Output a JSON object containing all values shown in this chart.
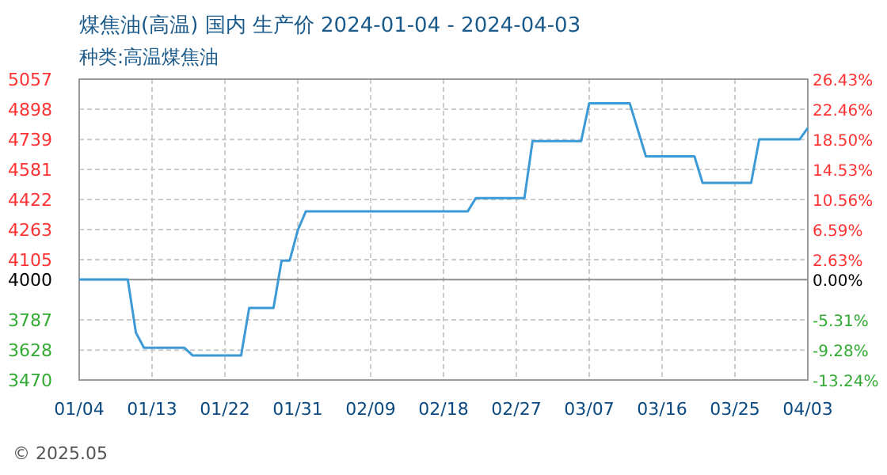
{
  "chart_data": {
    "type": "line",
    "title": "煤焦油(高温) 国内 生产价 2024-01-04 - 2024-04-03",
    "subtitle": "种类:高温煤焦油",
    "x": [
      "2024-01-04",
      "2024-01-10",
      "2024-01-11",
      "2024-01-12",
      "2024-01-17",
      "2024-01-18",
      "2024-01-24",
      "2024-01-25",
      "2024-01-28",
      "2024-01-29",
      "2024-01-30",
      "2024-01-31",
      "2024-02-01",
      "2024-02-21",
      "2024-02-22",
      "2024-02-28",
      "2024-02-29",
      "2024-03-06",
      "2024-03-07",
      "2024-03-12",
      "2024-03-14",
      "2024-03-20",
      "2024-03-21",
      "2024-03-27",
      "2024-03-28",
      "2024-04-02",
      "2024-04-03"
    ],
    "series": [
      {
        "color": "#3c9ad6",
        "values": [
          4000,
          4000,
          3720,
          3640,
          3640,
          3600,
          3600,
          3850,
          3850,
          4100,
          4100,
          4260,
          4360,
          4360,
          4430,
          4430,
          4730,
          4730,
          4930,
          4930,
          4650,
          4650,
          4510,
          4510,
          4740,
          4740,
          4800
        ]
      }
    ],
    "xlim": [
      "2024-01-04",
      "2024-04-03"
    ],
    "xticks": [
      {
        "value": "2024-01-04",
        "label": "01/04"
      },
      {
        "value": "2024-01-13",
        "label": "01/13"
      },
      {
        "value": "2024-01-22",
        "label": "01/22"
      },
      {
        "value": "2024-01-31",
        "label": "01/31"
      },
      {
        "value": "2024-02-09",
        "label": "02/09"
      },
      {
        "value": "2024-02-18",
        "label": "02/18"
      },
      {
        "value": "2024-02-27",
        "label": "02/27"
      },
      {
        "value": "2024-03-07",
        "label": "03/07"
      },
      {
        "value": "2024-03-16",
        "label": "03/16"
      },
      {
        "value": "2024-03-25",
        "label": "03/25"
      },
      {
        "value": "2024-04-03",
        "label": "04/03"
      }
    ],
    "ylim": [
      3470,
      5057
    ],
    "yticks": [
      3470,
      3628,
      3787,
      4000,
      4105,
      4263,
      4422,
      4581,
      4739,
      4898,
      5057
    ],
    "y2lim": [
      -13.24,
      26.43
    ],
    "y2ticks": [
      {
        "value": -13.24,
        "label": "-13.24%"
      },
      {
        "value": -9.28,
        "label": "-9.28%"
      },
      {
        "value": -5.31,
        "label": "-5.31%"
      },
      {
        "value": 0,
        "label": "0.00%"
      },
      {
        "value": 2.63,
        "label": "2.63%"
      },
      {
        "value": 6.59,
        "label": "6.59%"
      },
      {
        "value": 10.56,
        "label": "10.56%"
      },
      {
        "value": 14.53,
        "label": "14.53%"
      },
      {
        "value": 18.5,
        "label": "18.50%"
      },
      {
        "value": 22.46,
        "label": "22.46%"
      },
      {
        "value": 26.43,
        "label": "26.43%"
      }
    ],
    "ref_lines": [
      {
        "axis": "y",
        "value": 4000,
        "color": "#999999"
      }
    ],
    "grid": true,
    "marker": "none",
    "line_style": "solid",
    "annotations": [
      "© 2025.05"
    ]
  }
}
